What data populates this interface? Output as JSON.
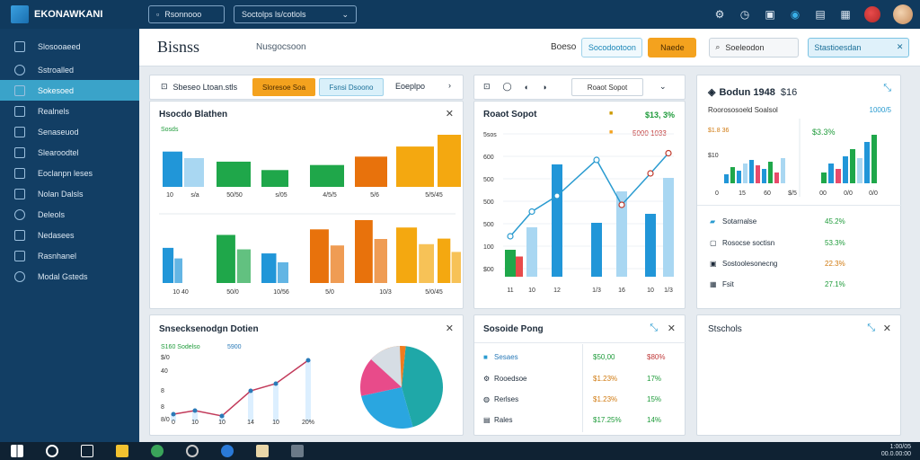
{
  "app": {
    "name": "EKONAWKANI"
  },
  "topbar": {
    "button1": "Rsonnooo",
    "select_value": "Soctolps ls/cotlols",
    "icons": [
      "settings-icon",
      "clock-icon",
      "image-icon",
      "globe-icon",
      "document-icon",
      "grid-icon"
    ]
  },
  "sidebar": {
    "items": [
      {
        "label": "Slosooaeed"
      },
      {
        "label": "Sstroalled"
      },
      {
        "label": "Sokesoed"
      },
      {
        "label": "Realnels"
      },
      {
        "label": "Senaseuod"
      },
      {
        "label": "Slearoodtel"
      },
      {
        "label": "Eoclanpn leses"
      },
      {
        "label": "Nolan Dalsls"
      },
      {
        "label": "Deleols"
      },
      {
        "label": "Nedasees"
      },
      {
        "label": "Rasnhanel"
      },
      {
        "label": "Modal Gsteds"
      }
    ]
  },
  "header": {
    "title": "Bisnss",
    "subtitle": "Nusgocsoon",
    "label": "Boeso",
    "btn_outline": "Socodootoon",
    "btn_orange": "Naede",
    "search": "Soeleodon",
    "filter": "Stastioesdan"
  },
  "toolbar_panel": {
    "label": "Sbeseo Ltoan.stls",
    "btn1": "Sloresoe Soa",
    "btn2": "Fsnsi Dsoono",
    "btn3": "Eoeplpo"
  },
  "panel_bars": {
    "title": "Hsocdo Blathen",
    "legend": "Sosds",
    "top_axis": [
      "10",
      "s/a",
      "50/50",
      "s/05",
      "4/5/5",
      "5/6",
      "5/5/45"
    ],
    "bottom_axis": [
      "10 40",
      "50/0",
      "10/56",
      "5/0",
      "10/3",
      "5/0/45"
    ]
  },
  "panel_combo": {
    "title": "Roaot Sopot",
    "legend1": "$13, 3%",
    "legend2": "5000 1033",
    "yaxis": [
      "5sos",
      "600",
      "500",
      "500",
      "500",
      "100",
      "$00"
    ],
    "xaxis": [
      "11",
      "10",
      "12",
      "1/3",
      "16",
      "10",
      "1/3"
    ]
  },
  "panel_right": {
    "title": "Bodun 1948",
    "subtitle": "$16",
    "note": "Roorososoeld Soalsol",
    "chip": "1000/5",
    "chart1_label": "$1.8 36",
    "chart1_val": "$10",
    "chart2_val": "$3.3%",
    "chart1_axis": [
      "0",
      "15",
      "60",
      "$/5"
    ],
    "chart2_axis": [
      "00",
      "0/0",
      "0/0"
    ],
    "rows": [
      {
        "label": "Sotarnalse",
        "value": "45.2%"
      },
      {
        "label": "Rosocse soctisn",
        "value": "53.3%"
      },
      {
        "label": "Sostoolesonecng",
        "value": "22.3%"
      },
      {
        "label": "Fsit",
        "value": "27.1%"
      }
    ]
  },
  "panel_line": {
    "title": "Snsecksenodgn Dotien",
    "legend1": "S160 Sodelso",
    "legend2": "5900",
    "yaxis": [
      "$/0",
      "40",
      "8",
      "8",
      "8/0"
    ],
    "xaxis": [
      "0",
      "10",
      "10",
      "14",
      "10",
      "20%"
    ]
  },
  "panel_table": {
    "title": "Sosoide Pong",
    "rows": [
      {
        "label": "Sesaes",
        "v1": "$50,00",
        "v2": "$80%"
      },
      {
        "label": "Rooedsoe",
        "v1": "$1.23%",
        "v2": "17%"
      },
      {
        "label": "Rerlses",
        "v1": "$1.23%",
        "v2": "15%"
      },
      {
        "label": "Rales",
        "v1": "$17.25%",
        "v2": "14%"
      }
    ]
  },
  "panel_blank": {
    "title": "Stschols"
  },
  "taskbar": {
    "time": "1:00/05",
    "date": "00.0.00:00"
  },
  "chart_data": [
    {
      "type": "bar",
      "title": "Hsocdo Blathen",
      "series": [
        {
          "values": [
            42,
            30,
            20,
            26,
            36,
            48,
            62
          ]
        },
        {
          "values": [
            38,
            52,
            32,
            58,
            68,
            60,
            48
          ]
        }
      ]
    },
    {
      "type": "bar",
      "title": "Roaot Sopot",
      "categories": [
        "11",
        "10",
        "12",
        "1/3",
        "16",
        "10",
        "1/3"
      ],
      "bars": [
        120,
        220,
        500,
        240,
        380,
        280,
        440
      ],
      "line": [
        180,
        290,
        360,
        520,
        320,
        460,
        550
      ]
    },
    {
      "type": "line",
      "title": "Snsecksenodgn Dotien",
      "values": [
        2,
        4,
        2,
        3,
        4,
        6,
        9
      ]
    },
    {
      "type": "pie",
      "values": [
        44,
        26,
        18,
        12
      ]
    }
  ],
  "colors": {
    "accent": "#3aa3c9",
    "sidebar": "#123e64",
    "topbar": "#103a5e"
  }
}
